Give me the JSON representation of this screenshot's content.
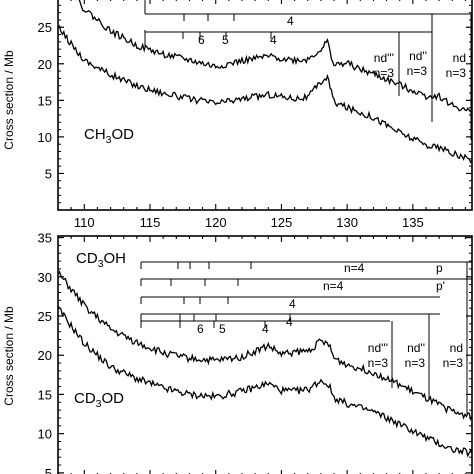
{
  "chart_data": [
    {
      "type": "line",
      "ylabel": "Cross section / Mb",
      "xlim": [
        108,
        139.5
      ],
      "ylim": [
        0,
        29
      ],
      "x_ticks": [
        110,
        115,
        120,
        125,
        130,
        135
      ],
      "y_ticks": [
        5,
        10,
        15,
        20,
        25
      ],
      "annotations": [
        "CH3OD",
        "nd'''",
        "n=3",
        "nd''",
        "n=3",
        "nd",
        "n=3",
        "6",
        "5",
        "4",
        "4"
      ],
      "series": [
        {
          "name": "CH3OD (upper trace)",
          "x": [
            108,
            110,
            112,
            114,
            116,
            118,
            120,
            122,
            124,
            126,
            127,
            128,
            128.5,
            129,
            130,
            131,
            132,
            134,
            136,
            137,
            138,
            139.5
          ],
          "y": [
            32,
            27.5,
            24.5,
            22.5,
            21.3,
            20.5,
            19.6,
            20.4,
            21,
            20.5,
            20.6,
            22,
            23,
            19.8,
            20.1,
            19.2,
            18.6,
            17.1,
            15.6,
            15.6,
            14.3,
            13.3
          ]
        },
        {
          "name": "CH3OD (lower trace)",
          "x": [
            108,
            110,
            112,
            114,
            116,
            118,
            120,
            122,
            124,
            126,
            127,
            128,
            128.5,
            129,
            130,
            132,
            134,
            136,
            137,
            138,
            139.5
          ],
          "y": [
            25,
            20.5,
            18.5,
            17,
            16,
            15.2,
            14.6,
            15.2,
            15.8,
            15.3,
            15.4,
            17.5,
            18.2,
            14.8,
            14,
            12.7,
            10.6,
            8.9,
            8.5,
            7.7,
            6.8
          ]
        }
      ]
    },
    {
      "type": "line",
      "ylabel": "Cross section / Mb",
      "xlim": [
        108,
        139.5
      ],
      "ylim": [
        4.6,
        35.2
      ],
      "x_ticks": [],
      "y_ticks": [
        5,
        10,
        15,
        20,
        25,
        30,
        35
      ],
      "annotations": [
        "CD3OH",
        "CD3OD",
        "n=4",
        "p",
        "n=4",
        "p'",
        "4",
        "4",
        "6",
        "5",
        "4",
        "nd'''",
        "n=3",
        "nd''",
        "n=3",
        "nd",
        "n=3"
      ],
      "series": [
        {
          "name": "CD3OH",
          "x": [
            108,
            110,
            112,
            114,
            116,
            118,
            120,
            122,
            124,
            125,
            126,
            127,
            128,
            128.6,
            129,
            130,
            132,
            134,
            136,
            138,
            139.5
          ],
          "y": [
            30.5,
            26.3,
            23.3,
            21.6,
            20.3,
            19.6,
            19.3,
            19.8,
            21.2,
            20.1,
            20.4,
            20.5,
            21.8,
            21.3,
            19.6,
            18.8,
            17.8,
            16.2,
            14.5,
            12.8,
            12.2
          ]
        },
        {
          "name": "CD3OD",
          "x": [
            108,
            110,
            112,
            114,
            116,
            118,
            120,
            122,
            124,
            125,
            126,
            127,
            128,
            128.6,
            129,
            130,
            132,
            134,
            136,
            138,
            139.5
          ],
          "y": [
            26,
            21.5,
            18.5,
            17,
            15.8,
            15,
            14.7,
            15.4,
            16.4,
            15.5,
            15.4,
            15.6,
            16.8,
            16.2,
            14.6,
            13.8,
            12.8,
            11.2,
            9.5,
            8,
            7.5
          ]
        }
      ]
    }
  ]
}
